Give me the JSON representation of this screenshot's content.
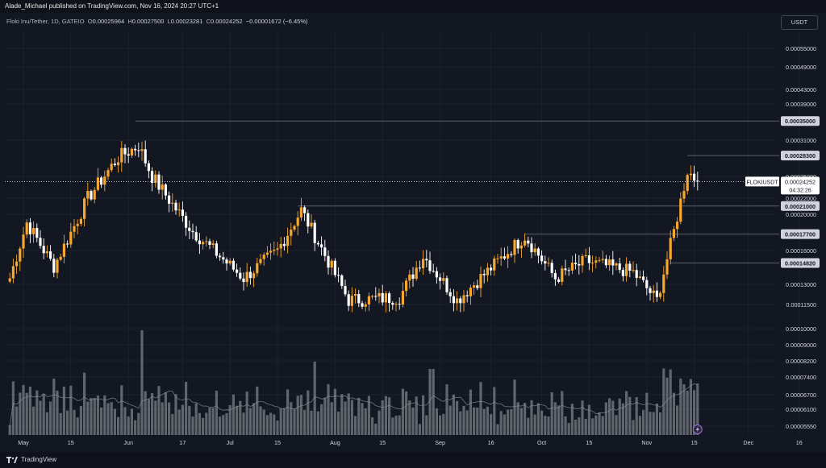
{
  "header": {
    "publisher_line": "Alade_Michael published on TradingView.com, Nov 16, 2024 20:27 UTC+1"
  },
  "legend": {
    "symbol": "Floki Inu/Tether, 1D, GATEIO",
    "o_label": "O",
    "o_value": "0.00025964",
    "h_label": "H",
    "h_value": "0.00027500",
    "l_label": "L",
    "l_value": "0.00023281",
    "c_label": "C",
    "c_value": "0.00024252",
    "change": "−0.00001672 (−6.45%)"
  },
  "currency_button": "USDT",
  "footer": {
    "brand": "TradingView"
  },
  "colors": {
    "up": "#f7a630",
    "down": "#ffffff",
    "volume": "#8a8d94",
    "volume_ma": "#8a8d94",
    "level_line": "#5d606b",
    "background": "#131722",
    "axis_text": "#d1d4dc"
  },
  "chart_data": {
    "type": "candlestick",
    "symbol_tag": "FLOKIUSDT",
    "last_price": "0.00024252",
    "countdown": "04:32:26",
    "x_tick_labels": [
      "May",
      "15",
      "Jun",
      "17",
      "Jul",
      "15",
      "Aug",
      "15",
      "Sep",
      "16",
      "Oct",
      "15",
      "Nov",
      "15",
      "Dec",
      "16"
    ],
    "y_tick_labels": [
      "0.00055000",
      "0.00049000",
      "0.00043000",
      "0.00039000",
      "0.00031000",
      "0.00025000",
      "0.00022000",
      "0.00020000",
      "0.00016000",
      "0.00013000",
      "0.00011500",
      "0.00010000",
      "0.00009000",
      "0.00008200",
      "0.00007400",
      "0.00006700",
      "0.00006100",
      "0.00005550"
    ],
    "price_levels": [
      "0.00035000",
      "0.00028300",
      "0.00021000",
      "0.00017700",
      "0.00014820"
    ],
    "price_scale": "log",
    "grid": true,
    "candle_count": 195,
    "candles_note": "daily candles approx. late Apr 2024 to Nov 16 2024",
    "anchors": [
      {
        "date": "Apr 27",
        "close": 0.000135
      },
      {
        "date": "May 2",
        "close": 0.00019
      },
      {
        "date": "May 10",
        "close": 0.000145
      },
      {
        "date": "May 20",
        "close": 0.00022
      },
      {
        "date": "May 29",
        "close": 0.00028
      },
      {
        "date": "Jun 4",
        "close": 0.0003
      },
      {
        "date": "Jun 8",
        "close": 0.00025
      },
      {
        "date": "Jun 20",
        "close": 0.00018
      },
      {
        "date": "Jul 5",
        "close": 0.000135
      },
      {
        "date": "Jul 15",
        "close": 0.00016
      },
      {
        "date": "Jul 22",
        "close": 0.000205
      },
      {
        "date": "Aug 5",
        "close": 0.000118
      },
      {
        "date": "Aug 20",
        "close": 0.00012
      },
      {
        "date": "Aug 27",
        "close": 0.000155
      },
      {
        "date": "Sep 6",
        "close": 0.000118
      },
      {
        "date": "Sep 26",
        "close": 0.000175
      },
      {
        "date": "Oct 5",
        "close": 0.000135
      },
      {
        "date": "Oct 14",
        "close": 0.00015
      },
      {
        "date": "Oct 28",
        "close": 0.00014
      },
      {
        "date": "Nov 4",
        "close": 0.000118
      },
      {
        "date": "Nov 9",
        "close": 0.00018
      },
      {
        "date": "Nov 13",
        "close": 0.000259
      },
      {
        "date": "Nov 16",
        "close": 0.00024252
      }
    ]
  }
}
